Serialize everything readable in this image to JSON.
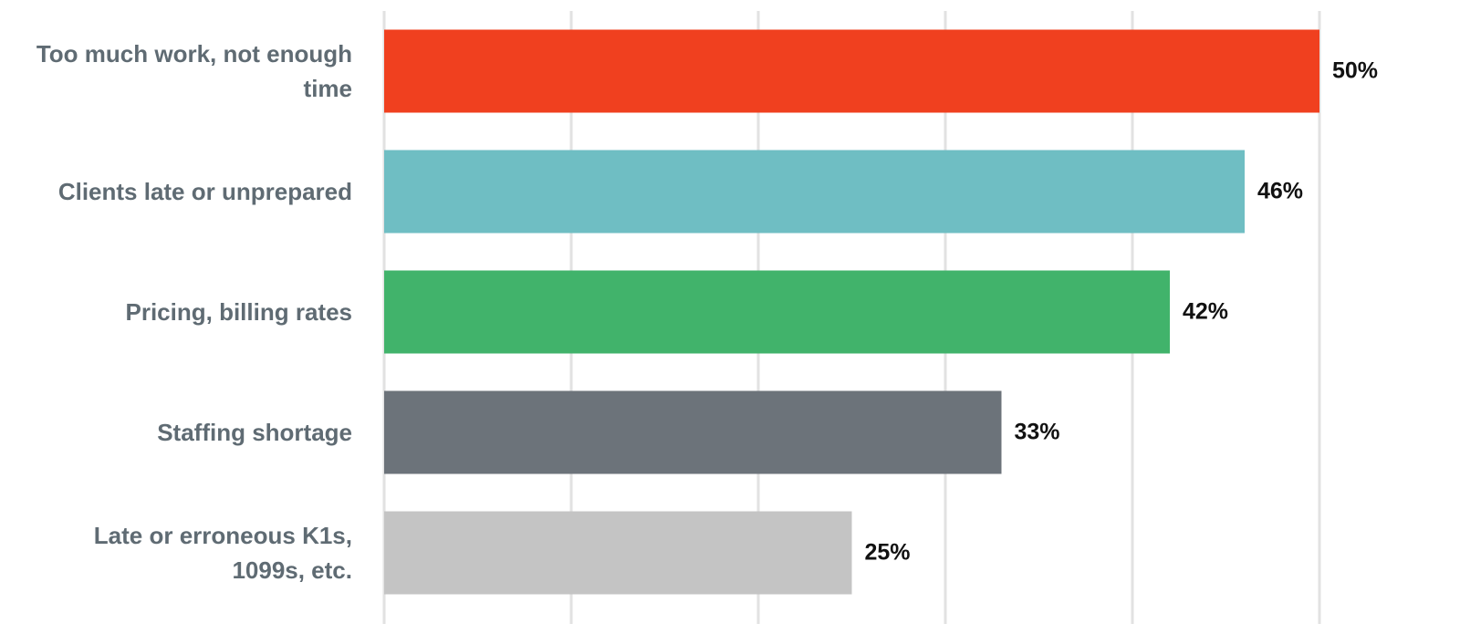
{
  "chart_data": {
    "type": "bar",
    "orientation": "horizontal",
    "categories": [
      "Too much work, not enough\ntime",
      "Clients late or unprepared",
      "Pricing, billing rates",
      "Staffing shortage",
      "Late or erroneous K1s,\n1099s, etc."
    ],
    "values": [
      50,
      46,
      42,
      33,
      25
    ],
    "value_labels": [
      "50%",
      "46%",
      "42%",
      "33%",
      "25%"
    ],
    "colors": [
      "#f0401f",
      "#6fbec3",
      "#41b36b",
      "#6c737a",
      "#c4c4c4"
    ],
    "xlim": [
      0,
      50
    ],
    "xticks": [
      0,
      10,
      20,
      30,
      40,
      50
    ],
    "grid": true
  }
}
